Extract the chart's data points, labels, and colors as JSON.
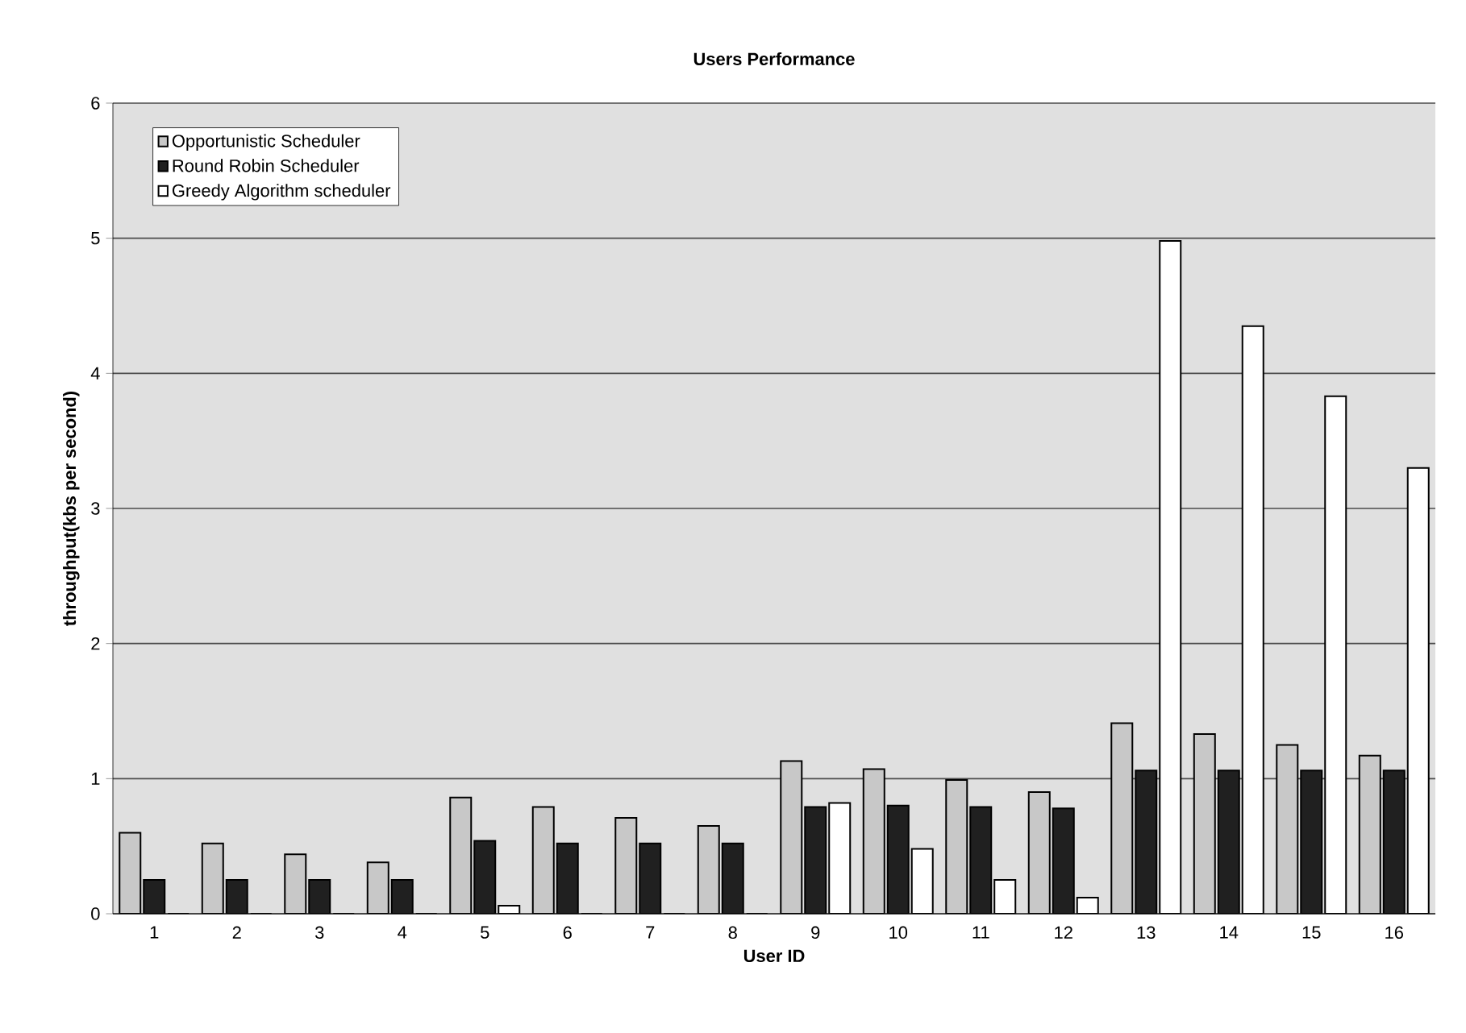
{
  "chart_data": {
    "type": "bar",
    "title": "Users Performance",
    "xlabel": "User ID",
    "ylabel": "throughput(kbs per second)",
    "categories": [
      "1",
      "2",
      "3",
      "4",
      "5",
      "6",
      "7",
      "8",
      "9",
      "10",
      "11",
      "12",
      "13",
      "14",
      "15",
      "16"
    ],
    "series": [
      {
        "name": "Opportunistic Scheduler",
        "color": "#c8c8c8",
        "values": [
          0.6,
          0.52,
          0.44,
          0.38,
          0.86,
          0.79,
          0.71,
          0.65,
          1.13,
          1.07,
          0.99,
          0.9,
          1.41,
          1.33,
          1.25,
          1.17
        ]
      },
      {
        "name": "Round Robin Scheduler",
        "color": "#202020",
        "values": [
          0.25,
          0.25,
          0.25,
          0.25,
          0.54,
          0.52,
          0.52,
          0.52,
          0.79,
          0.8,
          0.79,
          0.78,
          1.06,
          1.06,
          1.06,
          1.06
        ]
      },
      {
        "name": "Greedy Algorithm scheduler",
        "color": "#ffffff",
        "values": [
          0,
          0,
          0,
          0,
          0.06,
          0,
          0,
          0,
          0.82,
          0.48,
          0.25,
          0.12,
          4.98,
          4.35,
          3.83,
          3.3
        ]
      }
    ],
    "ylim": [
      0,
      6
    ],
    "yticks": [
      0,
      1,
      2,
      3,
      4,
      5,
      6
    ],
    "grid": "y",
    "legend": "top left"
  }
}
